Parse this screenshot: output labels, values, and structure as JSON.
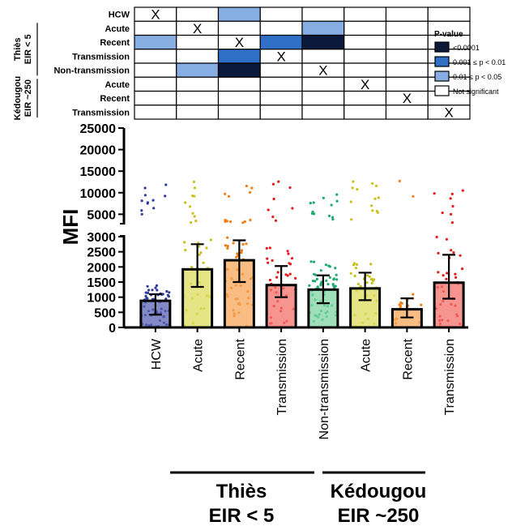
{
  "chart_data": {
    "type": "bar",
    "ylabel": "MFI",
    "categories": [
      "HCW",
      "Acute",
      "Recent",
      "Transmission",
      "Non-transmission",
      "Acute",
      "Recent",
      "Transmission"
    ],
    "colors": [
      "#5b63b3",
      "#dcdc5e",
      "#f7a559",
      "#f3716a",
      "#7fd6a4",
      "#dcdc5e",
      "#f7a559",
      "#f3716a"
    ],
    "point_colors": [
      "#2d3b9a",
      "#c7c21a",
      "#f07d14",
      "#e31d1d",
      "#1daa6e",
      "#c7c21a",
      "#f07d14",
      "#e31d1d"
    ],
    "bar_values": [
      880,
      1920,
      2220,
      1400,
      1250,
      1290,
      600,
      1480
    ],
    "error_low": [
      420,
      1340,
      1500,
      1000,
      800,
      900,
      330,
      950
    ],
    "error_high": [
      1100,
      2750,
      2880,
      2030,
      1720,
      1810,
      960,
      2400
    ],
    "y_axis": {
      "lower_ticks": [
        "0",
        "500",
        "1000",
        "1500",
        "2000",
        "2500",
        "3000"
      ],
      "upper_ticks": [
        "5000",
        "10000",
        "15000",
        "20000",
        "25000"
      ],
      "lower_range": [
        0,
        3000
      ],
      "upper_range": [
        3000,
        25000
      ],
      "axis_break": true
    },
    "groups": [
      {
        "name": "Thiès\nEIR < 5",
        "label_line1": "Thiès",
        "label_line2": "EIR < 5",
        "members": [
          1,
          2,
          3,
          4
        ]
      },
      {
        "name": "Kédougou\nEIR ~250",
        "label_line1": "Kédougou",
        "label_line2": "EIR ~250",
        "members": [
          5,
          6,
          7
        ]
      }
    ],
    "heatmap": {
      "row_labels": [
        "HCW",
        "Acute",
        "Recent",
        "Transmission",
        "Non-transmission",
        "Acute",
        "Recent",
        "Transmission"
      ],
      "row_groups": [
        {
          "line1": "Thiès",
          "line2": "EIR < 5",
          "rows": [
            1,
            2,
            3,
            4
          ]
        },
        {
          "line1": "Kédougou",
          "line2": "EIR ~250",
          "rows": [
            5,
            6,
            7
          ]
        }
      ],
      "cells": [
        [
          "X",
          "",
          "c",
          "",
          "",
          "",
          "",
          ""
        ],
        [
          "",
          "X",
          "",
          "",
          "c",
          "",
          "",
          ""
        ],
        [
          "c",
          "",
          "X",
          "b",
          "a",
          "",
          "",
          ""
        ],
        [
          "",
          "",
          "b",
          "X",
          "",
          "",
          "",
          ""
        ],
        [
          "",
          "c",
          "a",
          "",
          "X",
          "",
          "",
          ""
        ],
        [
          "",
          "",
          "",
          "",
          "",
          "X",
          "",
          ""
        ],
        [
          "",
          "",
          "",
          "",
          "",
          "",
          "X",
          ""
        ],
        [
          "",
          "",
          "",
          "",
          "",
          "",
          "",
          "X"
        ]
      ]
    },
    "legend": {
      "title": "P-value",
      "position": "right",
      "items": [
        {
          "key": "a",
          "label": "<0.0001",
          "color": "#0b1a3a"
        },
        {
          "key": "b",
          "label": "0.001 ≤ p < 0.01",
          "color": "#2f6fc6"
        },
        {
          "key": "c",
          "label": "0.01 ≤ p < 0.05",
          "color": "#86aee3"
        },
        {
          "key": "n",
          "label": "Not significant",
          "color": "#ffffff"
        }
      ]
    }
  }
}
